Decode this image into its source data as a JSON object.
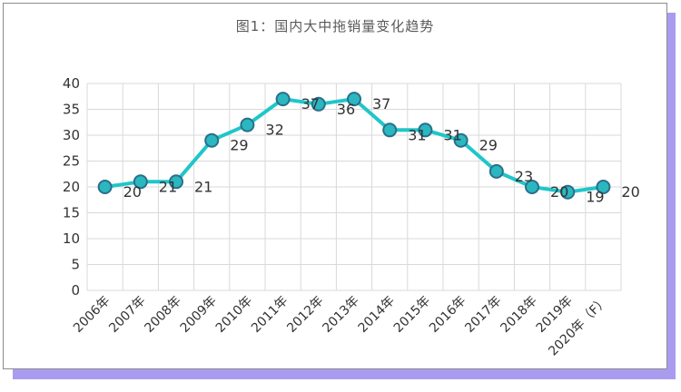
{
  "chart_data": {
    "type": "line",
    "title": "图1：国内大中拖销量变化趋势",
    "xlabel": "",
    "ylabel": "",
    "categories": [
      "2006年",
      "2007年",
      "2008年",
      "2009年",
      "2010年",
      "2011年",
      "2012年",
      "2013年",
      "2014年",
      "2015年",
      "2016年",
      "2017年",
      "2018年",
      "2019年",
      "2020年（F）"
    ],
    "series": [
      {
        "values": [
          20,
          21,
          21,
          29,
          32,
          37,
          36,
          37,
          31,
          31,
          29,
          23,
          20,
          19,
          20
        ]
      }
    ],
    "ylim": [
      0,
      40
    ],
    "yticks": [
      0,
      5,
      10,
      15,
      20,
      25,
      30,
      35,
      40
    ],
    "grid": true,
    "legend": "none",
    "colors": {
      "line": "#1fc6c9",
      "marker_fill": "#2ab7c0",
      "marker_stroke": "#2a6f8a",
      "grid": "#d9d9d9",
      "text": "#333333"
    }
  }
}
